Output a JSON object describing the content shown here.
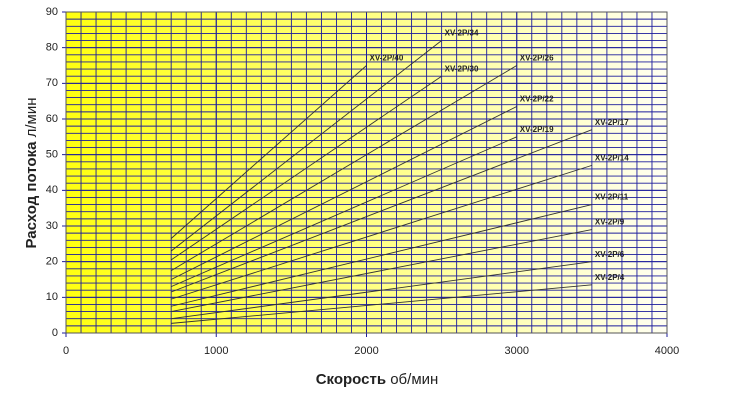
{
  "chart_data": {
    "type": "line",
    "xlabel": {
      "bold": "Скорость",
      "unit": "об/мин"
    },
    "ylabel": {
      "bold": "Расход потока",
      "unit": "л/мин"
    },
    "xlim": [
      0,
      4000
    ],
    "xticks": [
      0,
      1000,
      2000,
      3000,
      4000
    ],
    "ylim": [
      0,
      90
    ],
    "yticks": [
      0,
      10,
      20,
      30,
      40,
      50,
      60,
      70,
      80,
      90
    ],
    "grid": true,
    "minor_grid": {
      "x": 100,
      "y": 2
    },
    "grid_color": "#1c1c9c",
    "background": [
      "#ffff10",
      "#fffff2"
    ],
    "line_color": "#333333",
    "series": [
      {
        "name": "XV-2P/40",
        "x": [
          700,
          2000
        ],
        "values": [
          26.5,
          75
        ]
      },
      {
        "name": "XV-2P/34",
        "x": [
          700,
          2500
        ],
        "values": [
          23,
          82
        ]
      },
      {
        "name": "XV-2P/30",
        "x": [
          700,
          2500
        ],
        "values": [
          20.5,
          72
        ]
      },
      {
        "name": "XV-2P/26",
        "x": [
          700,
          3000
        ],
        "values": [
          17.5,
          75
        ]
      },
      {
        "name": "XV-2P/22",
        "x": [
          700,
          3000
        ],
        "values": [
          15,
          63.5
        ]
      },
      {
        "name": "XV-2P/19",
        "x": [
          700,
          3000
        ],
        "values": [
          13,
          55
        ]
      },
      {
        "name": "XV-2P/17",
        "x": [
          700,
          3500
        ],
        "values": [
          11.5,
          57
        ]
      },
      {
        "name": "XV-2P/14",
        "x": [
          700,
          3500
        ],
        "values": [
          9.5,
          47
        ]
      },
      {
        "name": "XV-2P/11",
        "x": [
          700,
          3500
        ],
        "values": [
          7.5,
          36
        ]
      },
      {
        "name": "XV-2P/9",
        "x": [
          700,
          3500
        ],
        "values": [
          6,
          29
        ]
      },
      {
        "name": "XV-2P/6",
        "x": [
          700,
          3500
        ],
        "values": [
          4,
          20
        ]
      },
      {
        "name": "XV-2P/4",
        "x": [
          700,
          3500
        ],
        "values": [
          2.7,
          13.5
        ]
      }
    ]
  }
}
